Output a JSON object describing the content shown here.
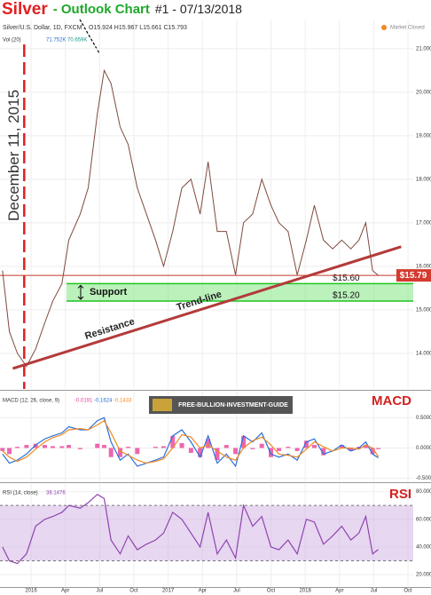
{
  "chart_data": [
    {
      "type": "line",
      "title": [
        "Silver",
        "- Outlook Chart",
        "#1 - 07/13/2018"
      ],
      "symbol": "Silver/U.S. Dollar, 1D, FXCM",
      "ohlc": "O15.924 H15.967 L15.661 C15.793",
      "status": "Market Closed",
      "volume_header": [
        "Vol (20)",
        "71.752K",
        "70.659K"
      ],
      "x": [
        -2.5,
        -1.9,
        -1.2,
        -0.4,
        0.4,
        1.2,
        1.9,
        2.7,
        3.3,
        4.3,
        5.0,
        5.8,
        6.4,
        7.0,
        7.8,
        8.5,
        9.3,
        10.1,
        10.9,
        11.6,
        12.4,
        13.2,
        14.0,
        14.8,
        15.5,
        16.3,
        17.1,
        17.9,
        18.6,
        19.4,
        20.2,
        21.0,
        21.7,
        22.5,
        23.3,
        24.1,
        24.8,
        25.6,
        26.4,
        27.2,
        28.0,
        28.7,
        29.3,
        29.9,
        30.4
      ],
      "values": [
        15.9,
        14.5,
        14.0,
        13.7,
        14.1,
        14.7,
        15.2,
        15.6,
        16.6,
        17.2,
        17.8,
        19.5,
        20.5,
        20.2,
        19.2,
        18.8,
        17.8,
        17.2,
        16.6,
        16.0,
        16.8,
        17.8,
        18.0,
        17.2,
        18.4,
        16.8,
        16.8,
        15.8,
        17.0,
        17.2,
        18.0,
        17.4,
        17.0,
        16.8,
        15.8,
        16.6,
        17.4,
        16.6,
        16.4,
        16.6,
        16.4,
        16.6,
        17.0,
        15.9,
        15.79
      ],
      "color": "#7d4a3c",
      "xlim": [
        -2.72,
        33.46
      ],
      "ylim": [
        13.18,
        21.67
      ],
      "yticks": [
        {
          "value": 14,
          "label": "14.000"
        },
        {
          "value": 15,
          "label": "15.000"
        },
        {
          "value": 16,
          "label": "16.000"
        },
        {
          "value": 17,
          "label": "17.000"
        },
        {
          "value": 18,
          "label": "18.000"
        },
        {
          "value": 19,
          "label": "19.000"
        },
        {
          "value": 20,
          "label": "20.000"
        },
        {
          "value": 21,
          "label": "21.000"
        }
      ],
      "last_price": {
        "value": 15.79,
        "label": "$15.79"
      },
      "support": {
        "label": "Support",
        "x": 3.1,
        "upper": 15.6,
        "upper_label": "$15.60",
        "lower": 15.2,
        "lower_label": "$15.20"
      },
      "trend_line": {
        "label": "Trend-line",
        "x": [
          -1.6,
          32.4
        ],
        "values": [
          13.65,
          16.45
        ]
      },
      "resistance_label": "Resistance",
      "event_line": {
        "x": -0.6,
        "label": "December 11, 2015"
      }
    },
    {
      "type": "line",
      "label": "MACD",
      "legend": "MACD (12, 26, close, 9)",
      "logo": "FREE-BULLION-INVESTMENT-GUIDE",
      "x": [
        -2.5,
        -1.9,
        -1.2,
        -0.4,
        0.4,
        1.2,
        1.9,
        2.7,
        3.3,
        4.3,
        5.0,
        5.8,
        6.4,
        7.0,
        7.8,
        8.5,
        9.3,
        10.1,
        10.9,
        11.6,
        12.4,
        13.2,
        14.0,
        14.8,
        15.5,
        16.3,
        17.1,
        17.9,
        18.6,
        19.4,
        20.2,
        21.0,
        21.7,
        22.5,
        23.3,
        24.1,
        24.8,
        25.6,
        26.4,
        27.2,
        28.0,
        28.7,
        29.3,
        29.9,
        30.4
      ],
      "series": [
        {
          "kind": "bar",
          "color": "#e8409a",
          "values": [
            -0.05,
            -0.1,
            0.02,
            0.05,
            0.07,
            0.05,
            0.03,
            0.03,
            0.05,
            -0.02,
            0,
            0.07,
            0.05,
            -0.15,
            -0.15,
            0.02,
            -0.1,
            0,
            0.02,
            0.03,
            0.2,
            0.08,
            -0.08,
            -0.15,
            0.15,
            -0.2,
            0.05,
            -0.1,
            0.2,
            -0.02,
            0.07,
            -0.15,
            -0.05,
            0.02,
            -0.05,
            0.12,
            0.05,
            -0.12,
            0,
            0.05,
            -0.05,
            0.02,
            0.05,
            -0.1,
            -0.0191
          ]
        },
        {
          "kind": "line",
          "color": "#2a6fdb",
          "values": [
            -0.1,
            -0.25,
            -0.2,
            -0.1,
            0.05,
            0.15,
            0.2,
            0.25,
            0.35,
            0.3,
            0.3,
            0.45,
            0.5,
            0.1,
            -0.2,
            -0.1,
            -0.3,
            -0.25,
            -0.2,
            -0.15,
            0.2,
            0.3,
            0.1,
            -0.15,
            0.2,
            -0.25,
            -0.1,
            -0.3,
            0.2,
            0.1,
            0.25,
            -0.1,
            -0.15,
            -0.1,
            -0.2,
            0.1,
            0.15,
            -0.1,
            -0.05,
            0.05,
            -0.05,
            0,
            0.1,
            -0.1,
            -0.1624
          ]
        },
        {
          "kind": "line",
          "color": "#f08a24",
          "values": [
            -0.05,
            -0.15,
            -0.22,
            -0.15,
            -0.02,
            0.1,
            0.17,
            0.22,
            0.3,
            0.32,
            0.3,
            0.38,
            0.45,
            0.25,
            -0.05,
            -0.12,
            -0.2,
            -0.25,
            -0.22,
            -0.18,
            0,
            0.22,
            0.18,
            0,
            0.05,
            -0.05,
            -0.15,
            -0.2,
            0,
            0.12,
            0.18,
            0.05,
            -0.1,
            -0.12,
            -0.15,
            -0.02,
            0.1,
            0.02,
            -0.05,
            0,
            0,
            -0.02,
            0.05,
            0,
            -0.1433
          ]
        }
      ],
      "xlim": [
        -2.72,
        33.46
      ],
      "ylim": [
        -0.55,
        0.93
      ],
      "yticks": [
        {
          "value": 0.5,
          "label": "0.5000"
        },
        {
          "value": 0,
          "label": "0.0000"
        },
        {
          "value": -0.5,
          "label": "-0.5000"
        }
      ]
    },
    {
      "type": "line",
      "label": "RSI",
      "legend": "RSI (14, close)",
      "x": [
        -2.5,
        -1.9,
        -1.2,
        -0.4,
        0.4,
        1.2,
        1.9,
        2.7,
        3.3,
        4.3,
        5.0,
        5.8,
        6.4,
        7.0,
        7.8,
        8.5,
        9.3,
        10.1,
        10.9,
        11.6,
        12.4,
        13.2,
        14.0,
        14.8,
        15.5,
        16.3,
        17.1,
        17.9,
        18.6,
        19.4,
        20.2,
        21.0,
        21.7,
        22.5,
        23.3,
        24.1,
        24.8,
        25.6,
        26.4,
        27.2,
        28.0,
        28.7,
        29.3,
        29.9,
        30.4
      ],
      "values": [
        40,
        30,
        28,
        35,
        55,
        60,
        62,
        65,
        70,
        68,
        72,
        78,
        75,
        45,
        35,
        48,
        38,
        42,
        45,
        50,
        65,
        60,
        50,
        40,
        65,
        35,
        45,
        32,
        70,
        55,
        62,
        40,
        38,
        45,
        35,
        60,
        58,
        42,
        48,
        55,
        45,
        50,
        62,
        35,
        38.1476
      ],
      "color": "#8e44ad",
      "bands": [
        30,
        70
      ],
      "band_color": "#c9a6e0",
      "xlim": [
        -2.72,
        33.46
      ],
      "ylim": [
        11.7,
        85.5
      ],
      "yticks": [
        {
          "value": 80,
          "label": "80.0000"
        },
        {
          "value": 60,
          "label": "60.0000"
        },
        {
          "value": 40,
          "label": "40.0000"
        },
        {
          "value": 20,
          "label": "20.0000"
        }
      ],
      "xticks": [
        {
          "value": 0,
          "label": "2016"
        },
        {
          "value": 3,
          "label": "Apr"
        },
        {
          "value": 6,
          "label": "Jul"
        },
        {
          "value": 9,
          "label": "Oct"
        },
        {
          "value": 12,
          "label": "2017"
        },
        {
          "value": 15,
          "label": "Apr"
        },
        {
          "value": 18,
          "label": "Jul"
        },
        {
          "value": 21,
          "label": "Oct"
        },
        {
          "value": 24,
          "label": "2018"
        },
        {
          "value": 27,
          "label": "Apr"
        },
        {
          "value": 30,
          "label": "Jul"
        },
        {
          "value": 33,
          "label": "Oct"
        }
      ]
    }
  ]
}
